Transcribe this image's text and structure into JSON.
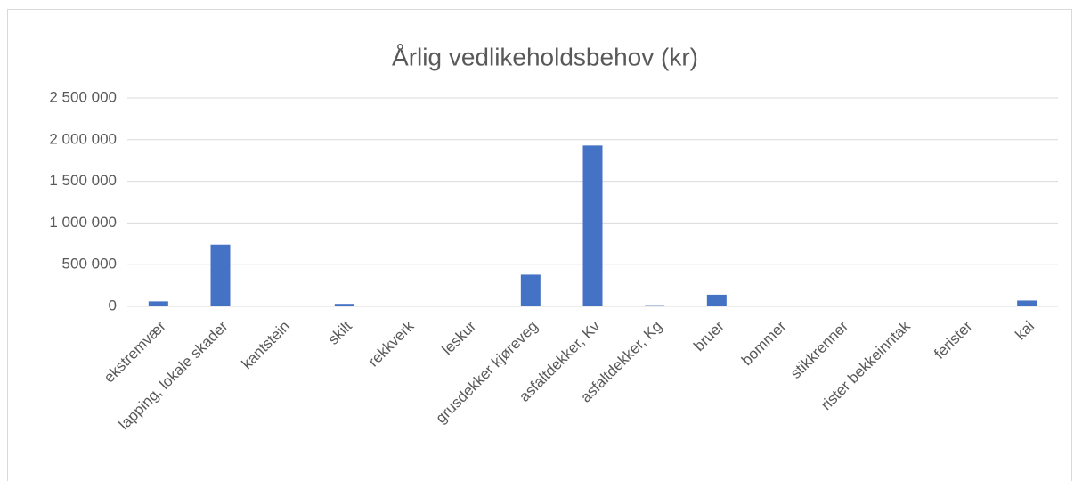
{
  "chart_data": {
    "type": "bar",
    "title": "Årlig vedlikeholdsbehov (kr)",
    "categories": [
      "ekstremvær",
      "lapping, lokale skader",
      "kantstein",
      "skilt",
      "rekkverk",
      "leskur",
      "grusdekker kjøreveg",
      "asfaltdekker, Kv",
      "asfaltdekker, Kg",
      "bruer",
      "bommer",
      "stikkrenner",
      "rister bekkeinntak",
      "ferister",
      "kai"
    ],
    "values": [
      60000,
      740000,
      2000,
      30000,
      5000,
      3000,
      380000,
      1930000,
      15000,
      140000,
      5000,
      2000,
      5000,
      8000,
      70000
    ],
    "color": "#4472c4",
    "ylim": [
      0,
      2500000
    ],
    "yticks": [
      0,
      {
        "value": 500000,
        "label": "500 000"
      },
      {
        "value": 1000000,
        "label": "1 000 000"
      },
      {
        "value": 1500000,
        "label": "1 500 000"
      },
      {
        "value": 2000000,
        "label": "2 000 000"
      },
      {
        "value": 2500000,
        "label": "2 500 000"
      }
    ],
    "grid": true
  }
}
